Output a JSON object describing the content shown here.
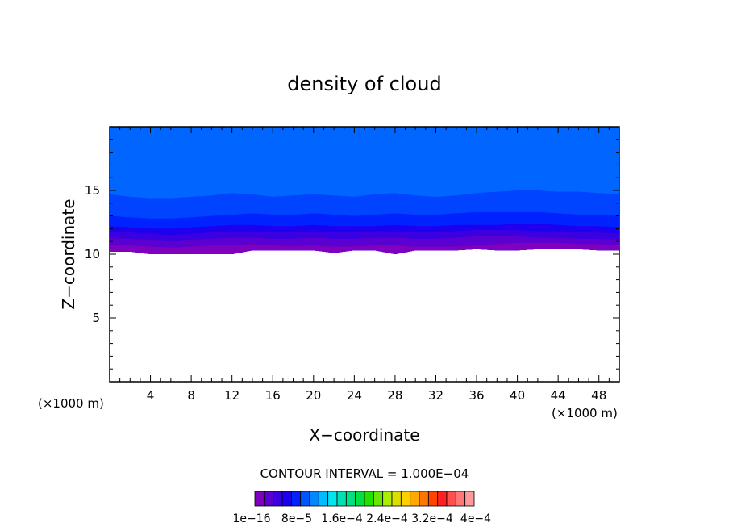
{
  "chart_data": {
    "type": "heatmap",
    "title": "density of cloud",
    "xlabel": "X−coordinate",
    "ylabel": "Z−coordinate",
    "x_unit": "(×1000 m)",
    "xlim": [
      0,
      50
    ],
    "ylim": [
      0,
      20
    ],
    "x_ticks": [
      4,
      8,
      12,
      16,
      20,
      24,
      28,
      32,
      36,
      40,
      44,
      48
    ],
    "x_tick_labels": [
      "4",
      "8",
      "12",
      "16",
      "20",
      "24",
      "28",
      "32",
      "36",
      "40",
      "44",
      "48"
    ],
    "y_ticks": [
      5,
      10,
      15
    ],
    "y_tick_labels": [
      "5",
      "10",
      "15"
    ],
    "contour_interval_text": "CONTOUR INTERVAL = 1.000E−04",
    "colorbar": {
      "colors": [
        "#7f00bf",
        "#5a00d0",
        "#3c00e0",
        "#1e00f0",
        "#0022ff",
        "#0055ff",
        "#0088ff",
        "#00bbff",
        "#00e5ee",
        "#00e0b0",
        "#00e080",
        "#00e040",
        "#22e000",
        "#66e600",
        "#aaee00",
        "#dddd00",
        "#ffd000",
        "#ffaa00",
        "#ff7700",
        "#ff4400",
        "#ff2222",
        "#ff5050",
        "#ff7878",
        "#ff9a9a"
      ],
      "labels": [
        "1e−16",
        "8e−5",
        "1.6e−4",
        "2.4e−4",
        "3.2e−4",
        "4e−4"
      ]
    },
    "bands": [
      {
        "color": "#0066ff",
        "top": [
          20,
          20,
          20,
          20,
          20,
          20,
          20,
          20,
          20,
          20,
          20,
          20,
          20,
          20,
          20,
          20,
          20,
          20,
          20,
          20,
          20,
          20,
          20,
          20,
          20,
          20
        ]
      },
      {
        "color": "#0044ff",
        "top": [
          14.7,
          14.5,
          14.4,
          14.4,
          14.5,
          14.6,
          14.8,
          14.7,
          14.5,
          14.6,
          14.7,
          14.6,
          14.5,
          14.7,
          14.8,
          14.6,
          14.5,
          14.6,
          14.8,
          14.9,
          15.0,
          15.0,
          14.9,
          14.9,
          14.8,
          14.7
        ]
      },
      {
        "color": "#0022ff",
        "top": [
          13.0,
          12.9,
          12.8,
          12.8,
          12.9,
          13.0,
          13.1,
          13.2,
          13.1,
          13.1,
          13.2,
          13.1,
          13.0,
          13.1,
          13.2,
          13.1,
          13.1,
          13.2,
          13.3,
          13.3,
          13.3,
          13.3,
          13.2,
          13.1,
          13.1,
          13.0
        ]
      },
      {
        "color": "#1e00f0",
        "top": [
          12.2,
          12.1,
          12.0,
          12.0,
          12.1,
          12.2,
          12.3,
          12.3,
          12.2,
          12.2,
          12.3,
          12.2,
          12.2,
          12.2,
          12.3,
          12.2,
          12.2,
          12.3,
          12.3,
          12.3,
          12.4,
          12.4,
          12.3,
          12.2,
          12.2,
          12.1
        ]
      },
      {
        "color": "#3c00e0",
        "top": [
          11.8,
          11.7,
          11.6,
          11.5,
          11.6,
          11.7,
          11.8,
          11.8,
          11.7,
          11.7,
          11.8,
          11.7,
          11.7,
          11.8,
          11.8,
          11.7,
          11.7,
          11.8,
          11.9,
          11.9,
          11.9,
          11.8,
          11.8,
          11.7,
          11.7,
          11.6
        ]
      },
      {
        "color": "#5a00d0",
        "top": [
          11.3,
          11.2,
          11.1,
          11.0,
          11.1,
          11.2,
          11.3,
          11.3,
          11.2,
          11.2,
          11.3,
          11.2,
          11.2,
          11.3,
          11.3,
          11.2,
          11.2,
          11.3,
          11.4,
          11.4,
          11.4,
          11.3,
          11.3,
          11.2,
          11.2,
          11.1
        ]
      },
      {
        "color": "#7f00bf",
        "top": [
          10.7,
          10.7,
          10.6,
          10.5,
          10.6,
          10.7,
          10.7,
          10.8,
          10.7,
          10.6,
          10.7,
          10.6,
          10.6,
          10.7,
          10.7,
          10.6,
          10.6,
          10.6,
          10.7,
          10.8,
          10.9,
          10.9,
          10.9,
          10.8,
          10.8,
          10.7
        ]
      }
    ],
    "band_x": [
      0,
      2,
      4,
      6,
      8,
      10,
      12,
      14,
      16,
      18,
      20,
      22,
      24,
      26,
      28,
      30,
      32,
      34,
      36,
      38,
      40,
      42,
      44,
      46,
      48,
      50
    ],
    "cloud_base": [
      10.2,
      10.2,
      10.0,
      10.0,
      10.0,
      10.0,
      10.0,
      10.3,
      10.3,
      10.3,
      10.3,
      10.1,
      10.3,
      10.3,
      10.0,
      10.3,
      10.3,
      10.3,
      10.4,
      10.3,
      10.3,
      10.4,
      10.4,
      10.4,
      10.3,
      10.3
    ]
  }
}
